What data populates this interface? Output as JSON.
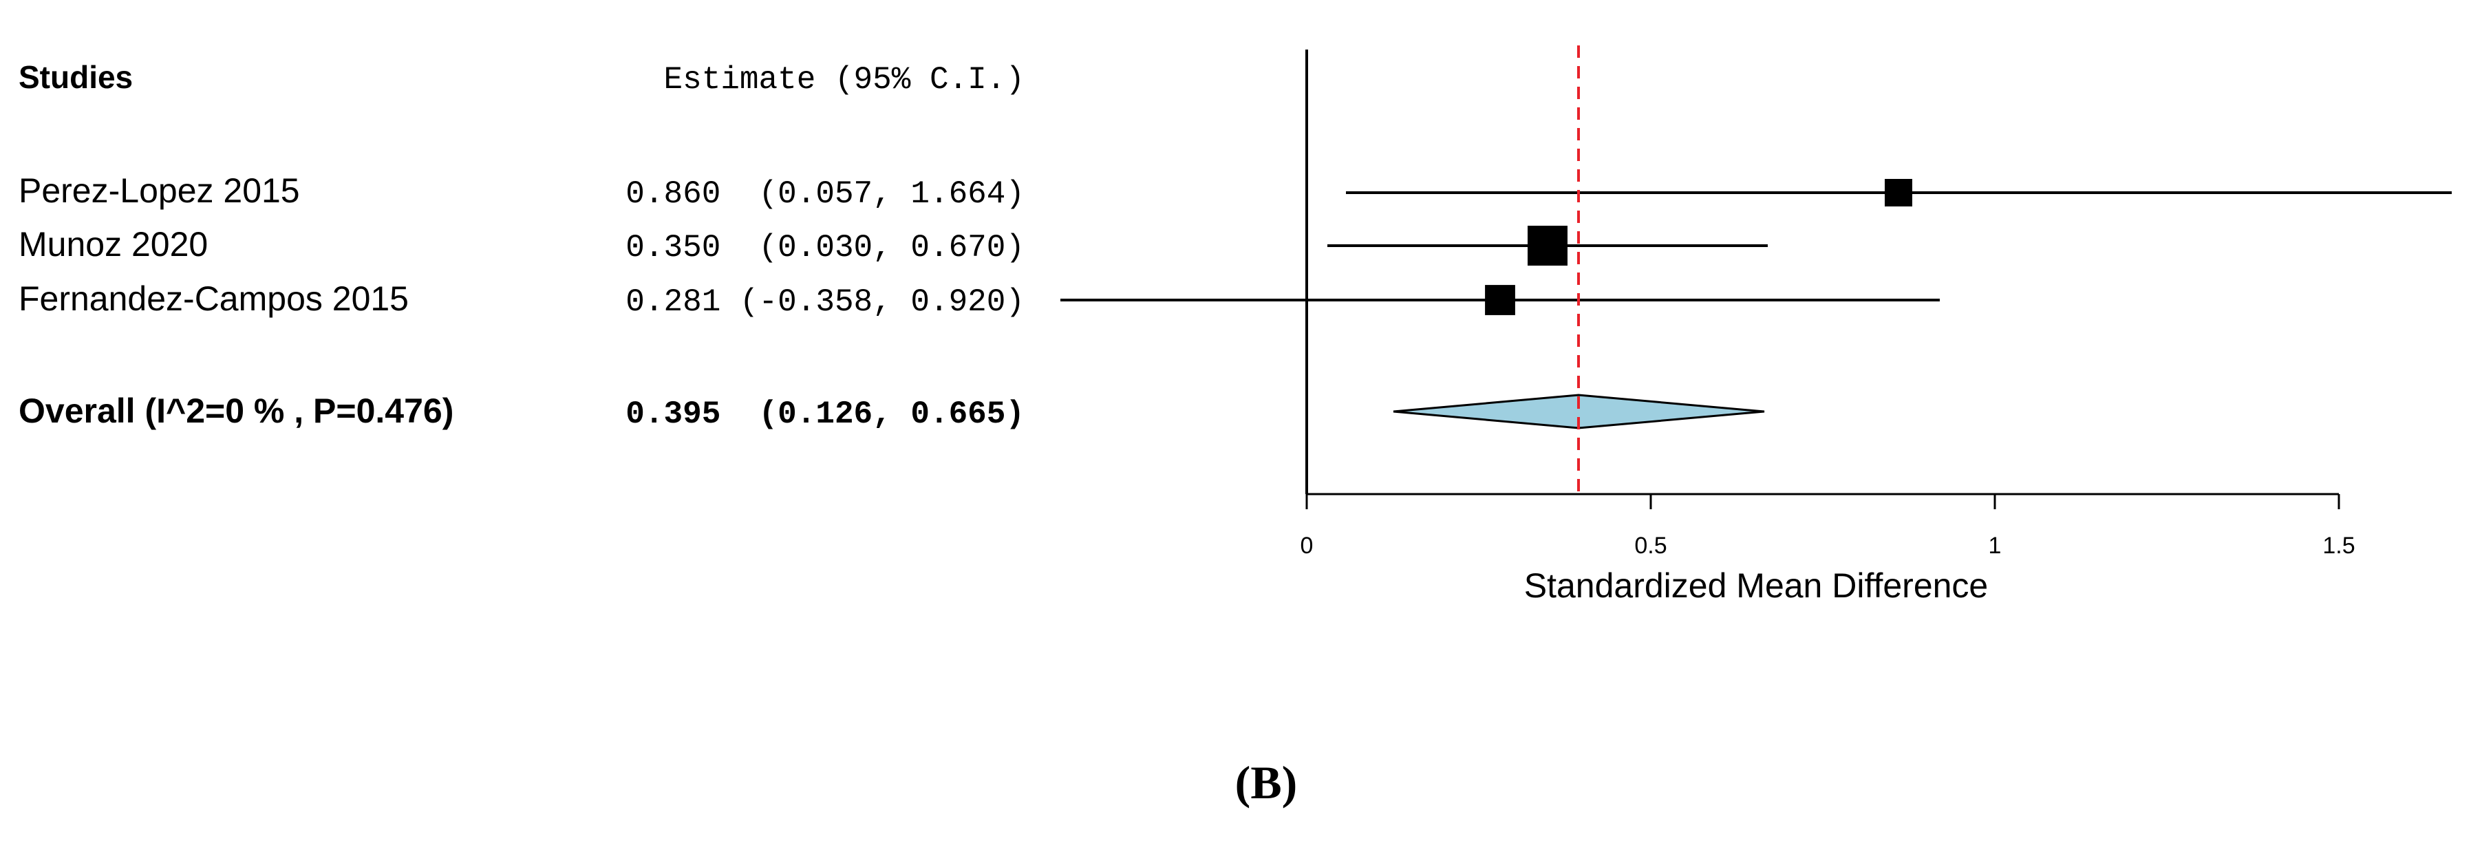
{
  "chart_data": {
    "type": "forest",
    "header": {
      "studies": "Studies",
      "estimate": "Estimate (95% C.I.)"
    },
    "studies": [
      {
        "label": "Perez-Lopez 2015",
        "estimate": 0.86,
        "ci_low": 0.057,
        "ci_high": 1.664,
        "ci_text": "0.860  (0.057, 1.664)",
        "weight": 1.0
      },
      {
        "label": "Munoz 2020",
        "estimate": 0.35,
        "ci_low": 0.03,
        "ci_high": 0.67,
        "ci_text": "0.350  (0.030, 0.670)",
        "weight": 2.1
      },
      {
        "label": "Fernandez-Campos 2015",
        "estimate": 0.281,
        "ci_low": -0.358,
        "ci_high": 0.92,
        "ci_text": "0.281 (-0.358, 0.920)",
        "weight": 1.2
      }
    ],
    "overall": {
      "label": "Overall (I^2=0 % , P=0.476)",
      "estimate": 0.395,
      "ci_low": 0.126,
      "ci_high": 0.665,
      "ci_text": "0.395  (0.126, 0.665)"
    },
    "xlabel": "Standardized Mean Difference",
    "xticks": [
      0,
      0.5,
      1,
      1.5
    ],
    "xtick_labels": [
      "0",
      "0.5",
      "1",
      "1.5"
    ],
    "xlim": [
      -0.358,
      1.664
    ],
    "reference_line": 0.395,
    "colors": {
      "marker": "#000000",
      "diamond_fill": "#9ecfe0",
      "reference_line": "#e8222a"
    }
  },
  "caption": "(B)"
}
